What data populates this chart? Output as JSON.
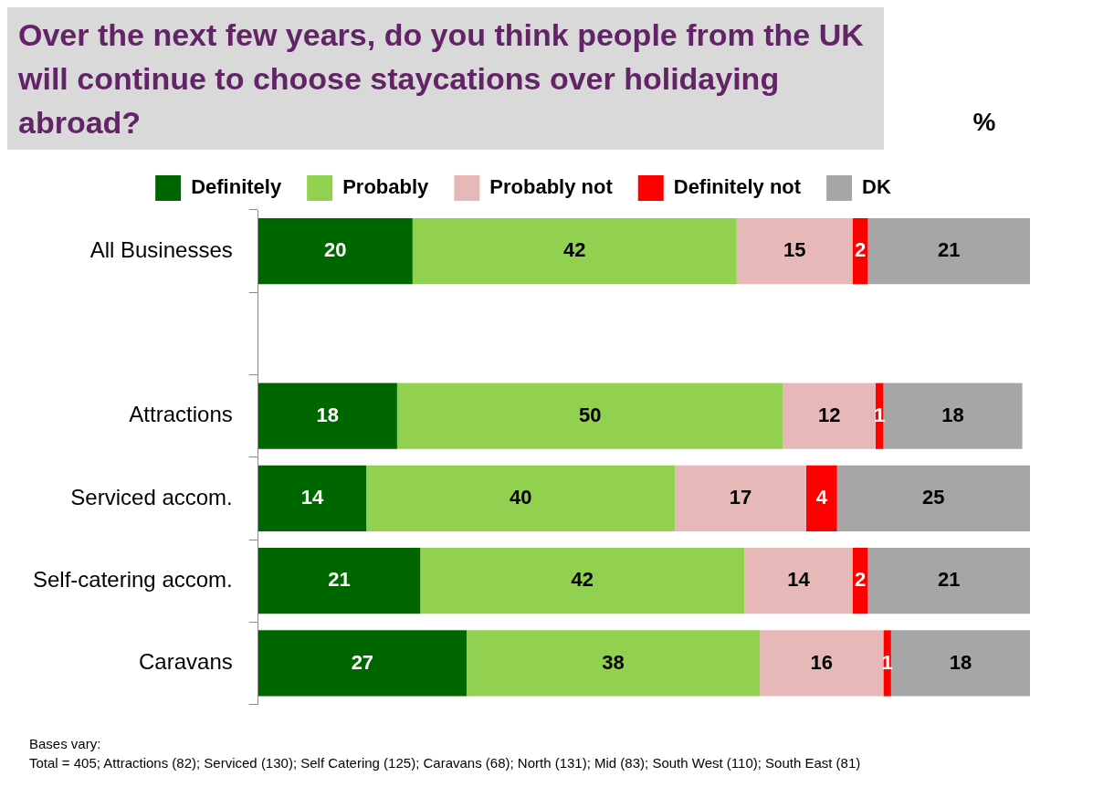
{
  "chart_data": {
    "type": "bar",
    "orientation": "horizontal",
    "stacked": true,
    "title": "Over the next few years, do you think people from the UK will continue to choose staycations over holidaying abroad?",
    "subtitle": "%",
    "categories": [
      "All Businesses",
      null,
      "Attractions",
      "Serviced accom.",
      "Self-catering accom.",
      "Caravans"
    ],
    "series": [
      {
        "name": "Definitely",
        "color": "#006600",
        "values": [
          20,
          null,
          18,
          14,
          21,
          27
        ]
      },
      {
        "name": "Probably",
        "color": "#92d050",
        "values": [
          42,
          null,
          50,
          40,
          42,
          38
        ]
      },
      {
        "name": "Probably not",
        "color": "#e6b9b8",
        "values": [
          15,
          null,
          12,
          17,
          14,
          16
        ]
      },
      {
        "name": "Definitely not",
        "color": "#ff0000",
        "values": [
          2,
          null,
          1,
          4,
          2,
          1
        ]
      },
      {
        "name": "DK",
        "color": "#a6a6a6",
        "values": [
          21,
          null,
          18,
          25,
          21,
          18
        ]
      }
    ],
    "data_labels": true,
    "legend": "top",
    "grid": false,
    "annotations": [
      "Bases vary:",
      "Total = 405; Attractions (82); Serviced (130); Self Catering (125); Caravans (68); North (131); Mid (83); South West (110); South East (81)"
    ]
  }
}
